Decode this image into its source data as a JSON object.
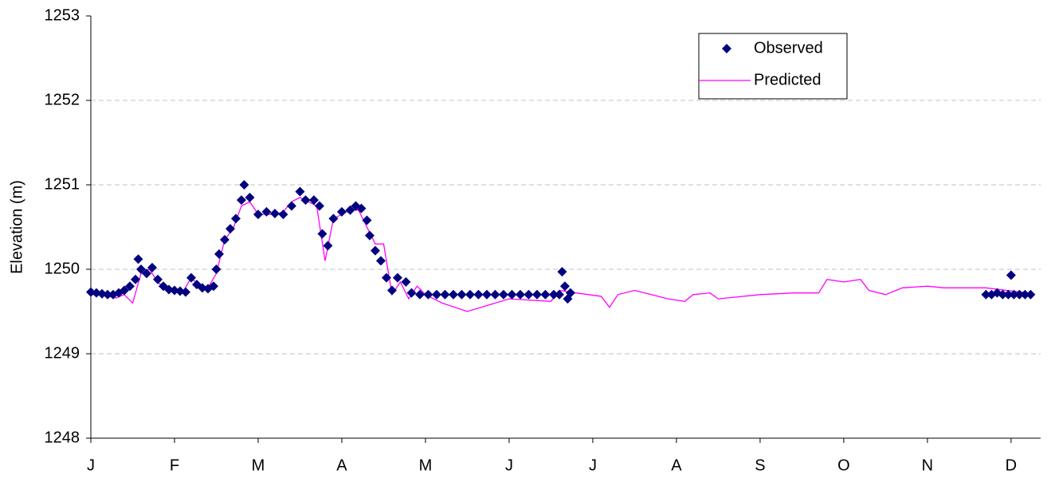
{
  "chart_data": {
    "type": "scatter-line",
    "ylabel": "Elevation (m)",
    "xlim": [
      0,
      340.6
    ],
    "xticks": [
      {
        "value": 0,
        "label": "J"
      },
      {
        "value": 30,
        "label": "F"
      },
      {
        "value": 60,
        "label": "M"
      },
      {
        "value": 90,
        "label": "A"
      },
      {
        "value": 120,
        "label": "M"
      },
      {
        "value": 150,
        "label": "J"
      },
      {
        "value": 180,
        "label": "J"
      },
      {
        "value": 210,
        "label": "A"
      },
      {
        "value": 240,
        "label": "S"
      },
      {
        "value": 270,
        "label": "O"
      },
      {
        "value": 300,
        "label": "N"
      },
      {
        "value": 330,
        "label": "D"
      }
    ],
    "ylim": [
      1248,
      1253
    ],
    "yticks": [
      1248,
      1249,
      1250,
      1251,
      1252,
      1253
    ],
    "grid": true,
    "legend": "upper right",
    "series": [
      {
        "name": "Observed",
        "color": "#000080",
        "mode": "markers",
        "x": [
          0,
          2,
          4,
          6,
          8,
          10,
          12,
          14,
          16,
          17,
          18,
          20,
          22,
          24,
          26,
          28,
          30,
          32,
          34,
          36,
          38,
          40,
          42,
          44,
          45,
          46,
          48,
          50,
          52,
          54,
          55,
          57,
          60,
          63,
          66,
          69,
          72,
          75,
          77,
          80,
          82,
          83,
          85,
          87,
          90,
          93,
          95,
          97,
          99,
          100,
          102,
          104,
          106,
          108,
          110,
          113,
          115,
          118,
          121,
          124,
          127,
          130,
          133,
          136,
          139,
          142,
          145,
          148,
          151,
          154,
          157,
          160,
          163,
          166,
          168,
          169,
          170,
          171,
          172,
          321,
          323,
          325,
          327,
          329,
          330,
          331,
          333,
          335,
          337
        ],
        "values": [
          1249.73,
          1249.72,
          1249.71,
          1249.7,
          1249.7,
          1249.72,
          1249.75,
          1249.8,
          1249.88,
          1250.12,
          1250.0,
          1249.95,
          1250.02,
          1249.88,
          1249.8,
          1249.76,
          1249.75,
          1249.74,
          1249.73,
          1249.9,
          1249.82,
          1249.78,
          1249.77,
          1249.8,
          1250.0,
          1250.18,
          1250.35,
          1250.48,
          1250.6,
          1250.82,
          1251.0,
          1250.85,
          1250.65,
          1250.68,
          1250.66,
          1250.65,
          1250.75,
          1250.92,
          1250.82,
          1250.82,
          1250.75,
          1250.42,
          1250.28,
          1250.6,
          1250.68,
          1250.7,
          1250.75,
          1250.72,
          1250.58,
          1250.4,
          1250.22,
          1250.1,
          1249.9,
          1249.75,
          1249.9,
          1249.85,
          1249.72,
          1249.7,
          1249.7,
          1249.7,
          1249.7,
          1249.7,
          1249.7,
          1249.7,
          1249.7,
          1249.7,
          1249.7,
          1249.7,
          1249.7,
          1249.7,
          1249.7,
          1249.7,
          1249.7,
          1249.7,
          1249.7,
          1249.97,
          1249.8,
          1249.65,
          1249.72,
          1249.7,
          1249.7,
          1249.72,
          1249.7,
          1249.7,
          1249.93,
          1249.7,
          1249.7,
          1249.7,
          1249.7
        ]
      },
      {
        "name": "Predicted",
        "color": "#ff00ff",
        "mode": "line",
        "x": [
          0,
          3,
          6,
          9,
          12,
          15,
          18,
          21,
          24,
          27,
          30,
          33,
          36,
          39,
          42,
          45,
          48,
          51,
          54,
          57,
          60,
          63,
          66,
          69,
          72,
          75,
          78,
          81,
          84,
          87,
          90,
          93,
          96,
          99,
          102,
          105,
          108,
          111,
          114,
          117,
          120,
          126,
          135,
          150,
          165,
          168,
          174,
          183,
          186,
          189,
          195,
          201,
          207,
          213,
          216,
          222,
          225,
          240,
          252,
          261,
          264,
          270,
          276,
          279,
          285,
          291,
          300,
          306,
          321,
          336
        ],
        "values": [
          1249.7,
          1249.7,
          1249.68,
          1249.66,
          1249.7,
          1249.6,
          1249.95,
          1250.0,
          1249.85,
          1249.76,
          1249.74,
          1249.73,
          1249.9,
          1249.8,
          1249.78,
          1249.95,
          1250.35,
          1250.48,
          1250.75,
          1250.8,
          1250.65,
          1250.65,
          1250.65,
          1250.68,
          1250.8,
          1250.85,
          1250.8,
          1250.75,
          1250.1,
          1250.6,
          1250.65,
          1250.7,
          1250.7,
          1250.5,
          1250.3,
          1250.3,
          1249.7,
          1249.85,
          1249.65,
          1249.8,
          1249.7,
          1249.6,
          1249.5,
          1249.65,
          1249.62,
          1249.75,
          1249.72,
          1249.68,
          1249.55,
          1249.7,
          1249.75,
          1249.7,
          1249.65,
          1249.62,
          1249.7,
          1249.72,
          1249.65,
          1249.7,
          1249.72,
          1249.72,
          1249.88,
          1249.85,
          1249.88,
          1249.75,
          1249.7,
          1249.78,
          1249.8,
          1249.78,
          1249.78,
          1249.72
        ]
      }
    ]
  }
}
